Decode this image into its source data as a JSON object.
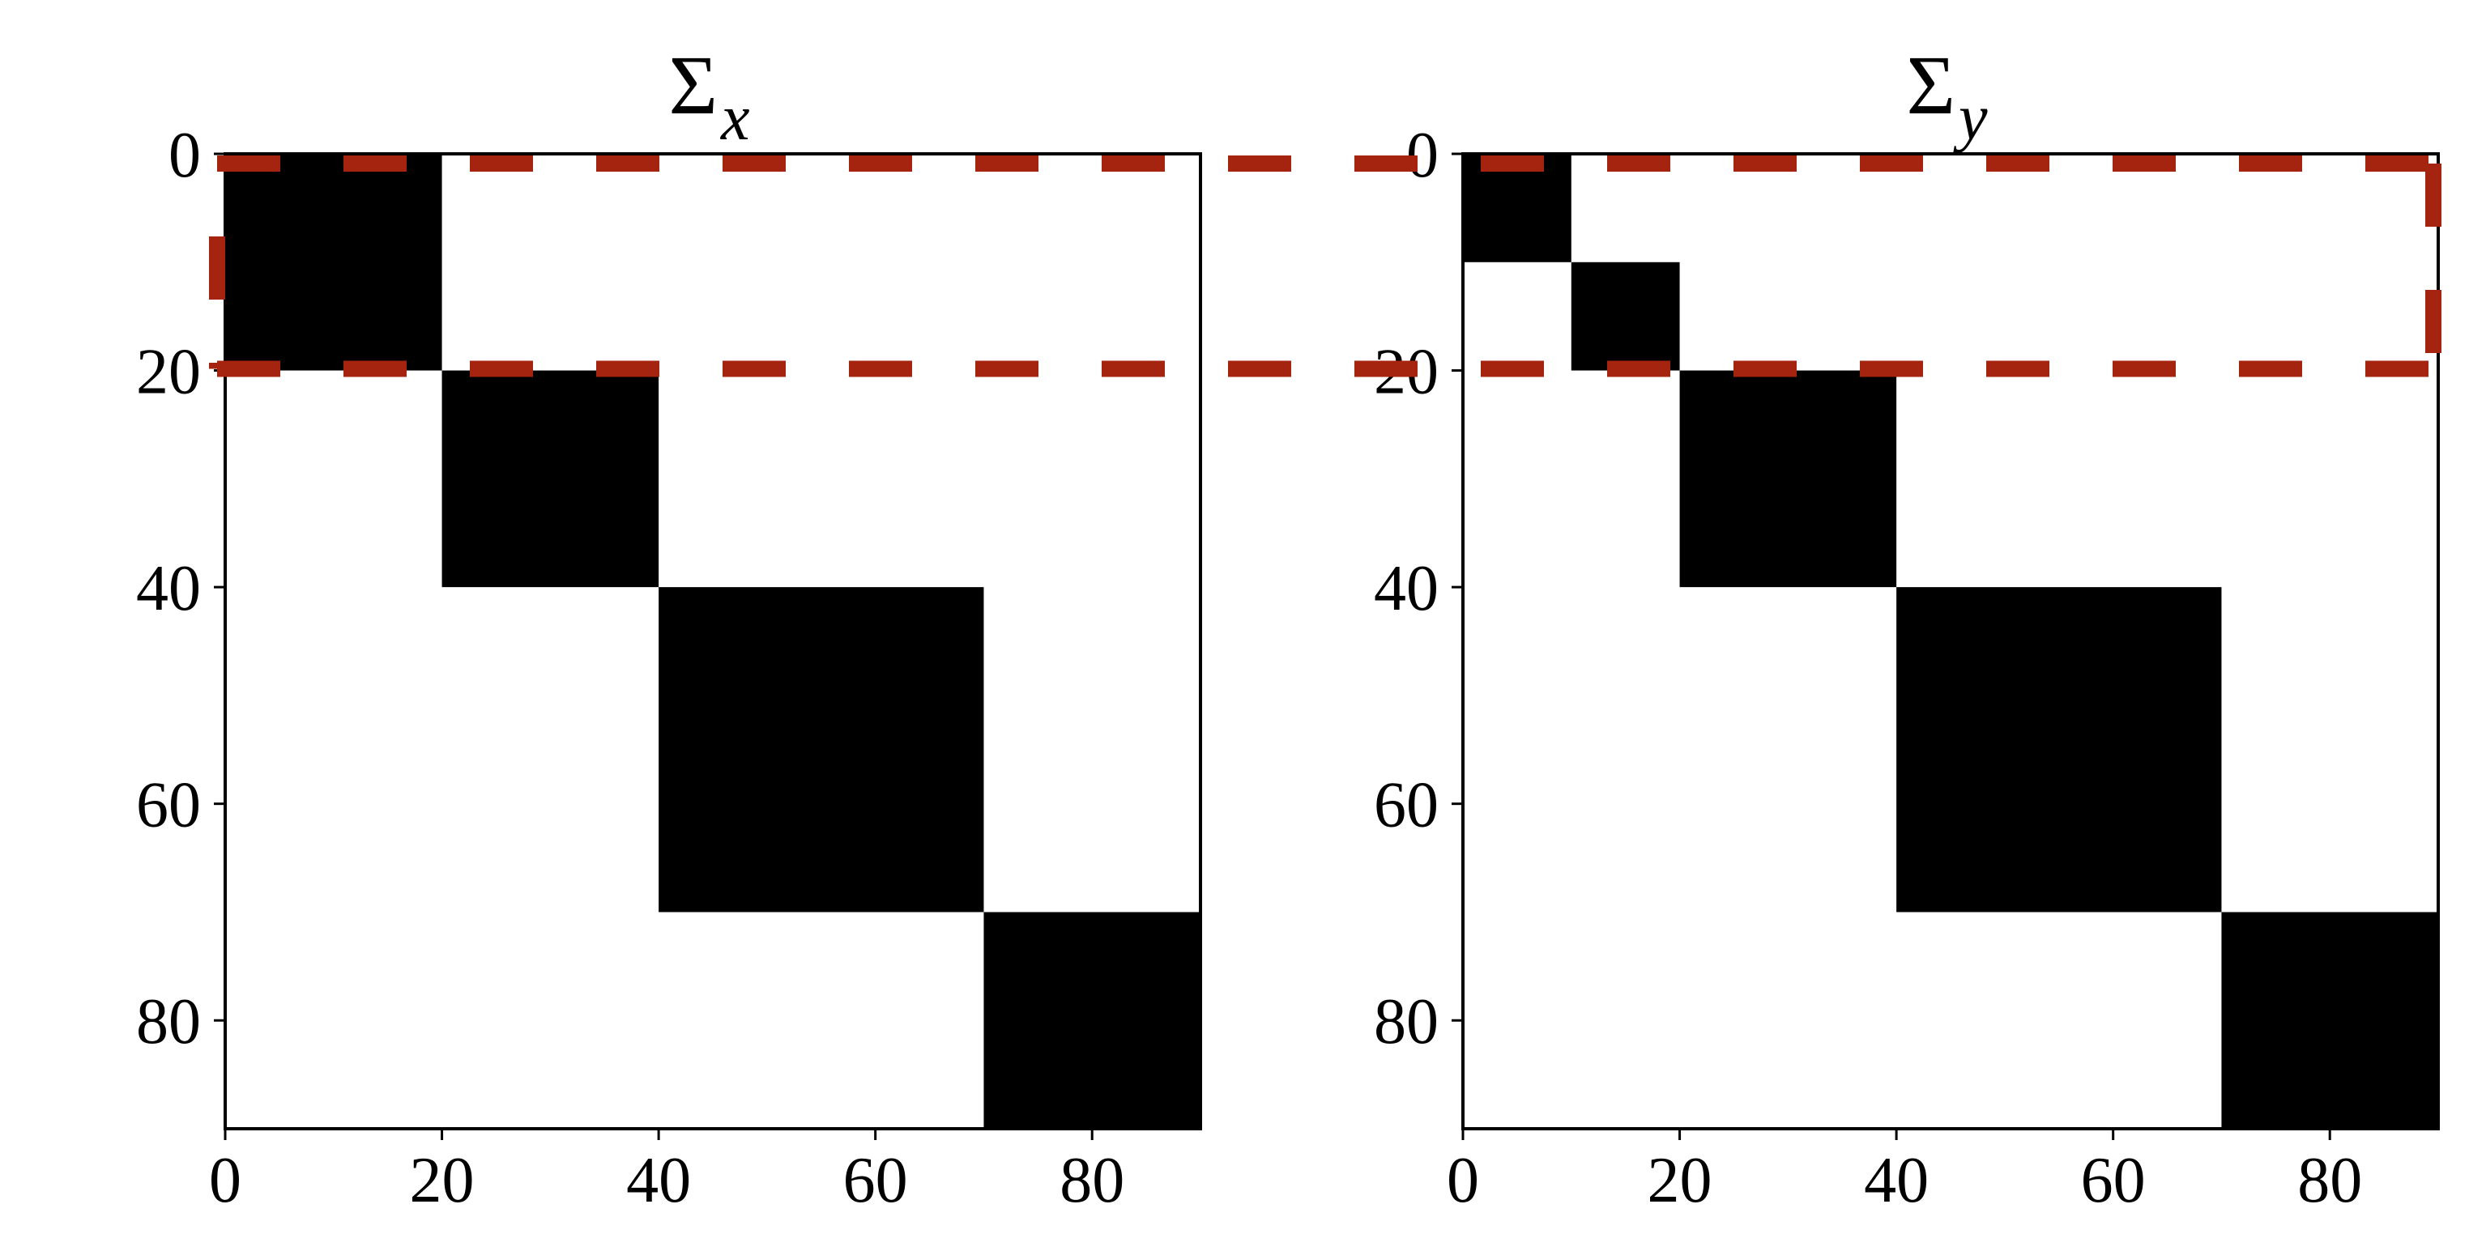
{
  "chart_data": [
    {
      "type": "heatmap",
      "title_symbol": "Σ",
      "title_subscript": "x",
      "xlim": [
        0,
        90
      ],
      "ylim": [
        90,
        0
      ],
      "xticks": [
        0,
        20,
        40,
        60,
        80
      ],
      "yticks": [
        0,
        20,
        40,
        60,
        80
      ],
      "colormap": "binary",
      "grid": false,
      "blocks": [
        {
          "start": 0,
          "end": 20,
          "value": 1
        },
        {
          "start": 20,
          "end": 40,
          "value": 1
        },
        {
          "start": 40,
          "end": 70,
          "value": 1
        },
        {
          "start": 70,
          "end": 90,
          "value": 1
        }
      ]
    },
    {
      "type": "heatmap",
      "title_symbol": "Σ",
      "title_subscript": "y",
      "xlim": [
        0,
        90
      ],
      "ylim": [
        90,
        0
      ],
      "xticks": [
        0,
        20,
        40,
        60,
        80
      ],
      "yticks": [
        0,
        20,
        40,
        60,
        80
      ],
      "colormap": "binary",
      "grid": false,
      "blocks": [
        {
          "start": 0,
          "end": 10,
          "value": 1
        },
        {
          "start": 10,
          "end": 20,
          "value": 1
        },
        {
          "start": 20,
          "end": 40,
          "value": 1
        },
        {
          "start": 40,
          "end": 70,
          "value": 1
        },
        {
          "start": 70,
          "end": 90,
          "value": 1
        }
      ]
    }
  ],
  "highlight": {
    "rows": [
      0,
      20
    ],
    "color": "#A52410",
    "style": "dashed"
  }
}
